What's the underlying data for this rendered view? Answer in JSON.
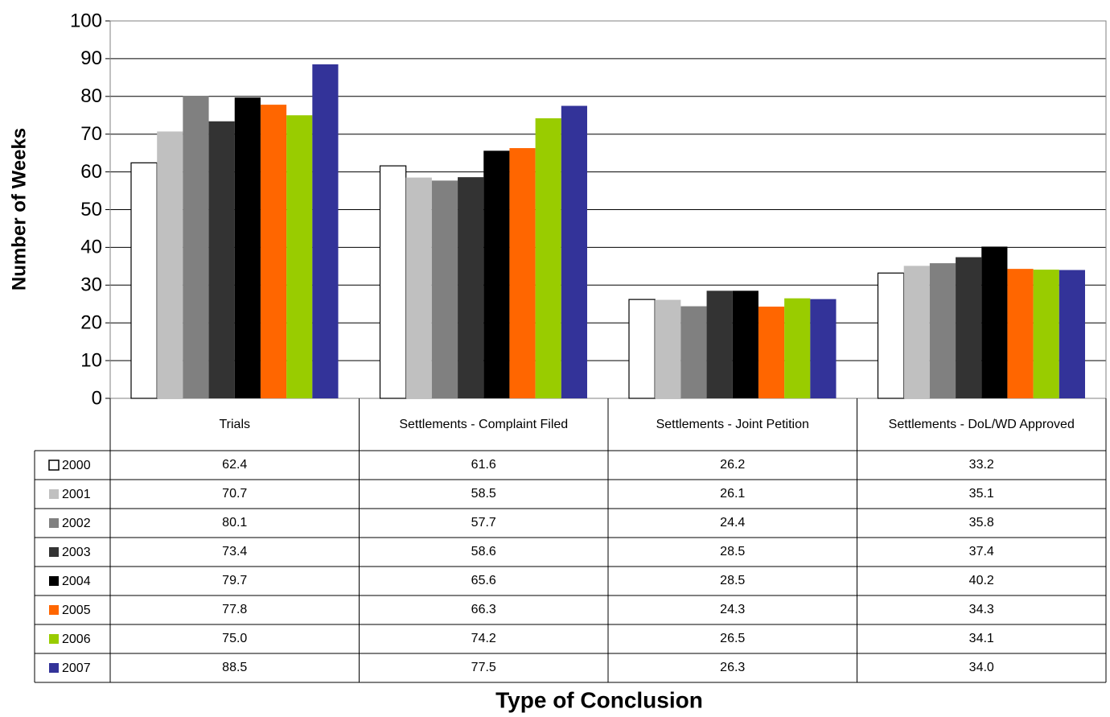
{
  "chart_data": {
    "type": "bar",
    "x_label": "Type of Conclusion",
    "y_label": "Number of Weeks",
    "categories": [
      "Trials",
      "Settlements - Complaint Filed",
      "Settlements - Joint Petition",
      "Settlements - DoL/WD Approved"
    ],
    "series": [
      {
        "name": "2000",
        "color": "#ffffff",
        "values": [
          62.4,
          61.6,
          26.2,
          33.2
        ],
        "value_labels": [
          "62.4",
          "61.6",
          "26.2",
          "33.2"
        ]
      },
      {
        "name": "2001",
        "color": "#c0c0c0",
        "values": [
          70.7,
          58.5,
          26.1,
          35.1
        ],
        "value_labels": [
          "70.7",
          "58.5",
          "26.1",
          "35.1"
        ]
      },
      {
        "name": "2002",
        "color": "#808080",
        "values": [
          80.1,
          57.7,
          24.4,
          35.8
        ],
        "value_labels": [
          "80.1",
          "57.7",
          "24.4",
          "35.8"
        ]
      },
      {
        "name": "2003",
        "color": "#333333",
        "values": [
          73.4,
          58.6,
          28.5,
          37.4
        ],
        "value_labels": [
          "73.4",
          "58.6",
          "28.5",
          "37.4"
        ]
      },
      {
        "name": "2004",
        "color": "#000000",
        "values": [
          79.7,
          65.6,
          28.5,
          40.2
        ],
        "value_labels": [
          "79.7",
          "65.6",
          "28.5",
          "40.2"
        ]
      },
      {
        "name": "2005",
        "color": "#ff6600",
        "values": [
          77.8,
          66.3,
          24.3,
          34.3
        ],
        "value_labels": [
          "77.8",
          "66.3",
          "24.3",
          "34.3"
        ]
      },
      {
        "name": "2006",
        "color": "#99cc00",
        "values": [
          75.0,
          74.2,
          26.5,
          34.1
        ],
        "value_labels": [
          "75.0",
          "74.2",
          "26.5",
          "34.1"
        ]
      },
      {
        "name": "2007",
        "color": "#333399",
        "values": [
          88.5,
          77.5,
          26.3,
          34.0
        ],
        "value_labels": [
          "88.5",
          "77.5",
          "26.3",
          "34.0"
        ]
      }
    ],
    "ylim": [
      0,
      100
    ],
    "yticks": [
      0,
      10,
      20,
      30,
      40,
      50,
      60,
      70,
      80,
      90,
      100
    ],
    "grid": true
  }
}
